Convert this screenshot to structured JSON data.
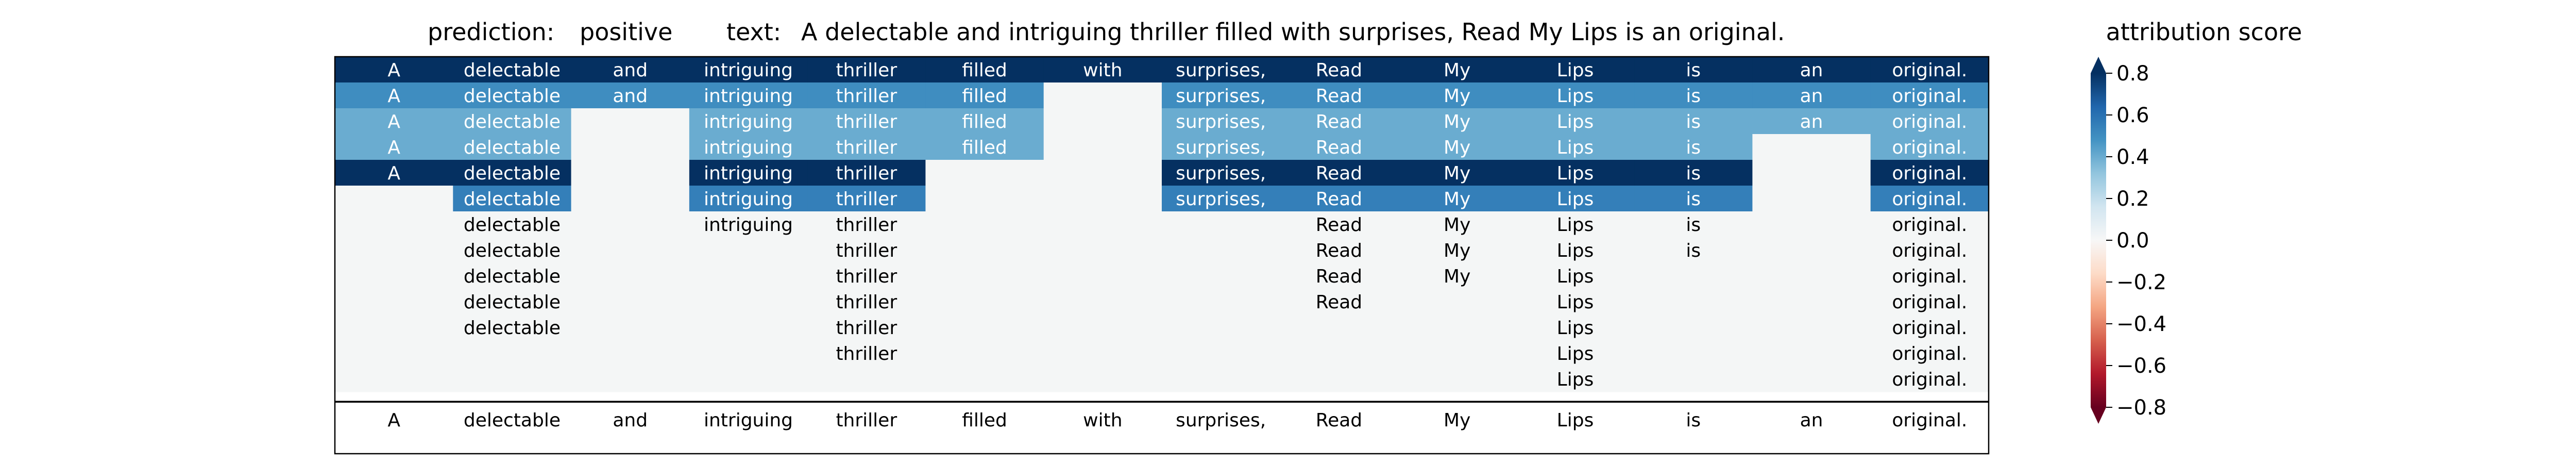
{
  "chart_data": {
    "type": "heatmap",
    "title_parts": {
      "prediction_label": "prediction:",
      "prediction_value": "positive",
      "text_label": "text:",
      "text_value": "A delectable and intriguing thriller filled with surprises, Read My Lips is an original."
    },
    "tokens": [
      "A",
      "delectable",
      "and",
      "intriguing",
      "thriller",
      "filled",
      "with",
      "surprises,",
      "Read",
      "My",
      "Lips",
      "is",
      "an",
      "original."
    ],
    "rows": [
      [
        0.8,
        0.8,
        0.8,
        0.8,
        0.8,
        0.8,
        0.8,
        0.8,
        0.8,
        0.8,
        0.8,
        0.8,
        0.8,
        0.8
      ],
      [
        0.5,
        0.5,
        0.5,
        0.5,
        0.5,
        0.5,
        null,
        0.5,
        0.5,
        0.5,
        0.5,
        0.5,
        0.5,
        0.5
      ],
      [
        0.4,
        0.4,
        null,
        0.4,
        0.4,
        0.4,
        null,
        0.4,
        0.4,
        0.4,
        0.4,
        0.4,
        0.4,
        0.4
      ],
      [
        0.4,
        0.4,
        null,
        0.4,
        0.4,
        0.4,
        null,
        0.4,
        0.4,
        0.4,
        0.4,
        0.4,
        null,
        0.4
      ],
      [
        0.9,
        0.9,
        null,
        0.9,
        0.9,
        null,
        null,
        0.9,
        0.9,
        0.9,
        0.9,
        0.9,
        null,
        0.9
      ],
      [
        null,
        0.55,
        null,
        0.55,
        0.55,
        null,
        null,
        0.55,
        0.55,
        0.55,
        0.55,
        0.55,
        null,
        0.55
      ],
      [
        null,
        0.0,
        null,
        0.0,
        0.0,
        null,
        null,
        null,
        0.0,
        0.0,
        0.0,
        0.0,
        null,
        0.0
      ],
      [
        null,
        0.0,
        null,
        null,
        0.0,
        null,
        null,
        null,
        0.0,
        0.0,
        0.0,
        0.0,
        null,
        0.0
      ],
      [
        null,
        0.0,
        null,
        null,
        0.0,
        null,
        null,
        null,
        0.0,
        0.0,
        0.0,
        null,
        null,
        0.0
      ],
      [
        null,
        0.0,
        null,
        null,
        0.0,
        null,
        null,
        null,
        0.0,
        null,
        0.0,
        null,
        null,
        0.0
      ],
      [
        null,
        0.0,
        null,
        null,
        0.0,
        null,
        null,
        null,
        null,
        null,
        0.0,
        null,
        null,
        0.0
      ],
      [
        null,
        null,
        null,
        null,
        0.0,
        null,
        null,
        null,
        null,
        null,
        0.0,
        null,
        null,
        0.0
      ],
      [
        null,
        null,
        null,
        null,
        null,
        null,
        null,
        null,
        null,
        null,
        0.0,
        null,
        null,
        0.0
      ]
    ],
    "colorbar": {
      "label": "attribution score",
      "range": [
        -0.8,
        0.8
      ],
      "ticks": [
        0.8,
        0.6,
        0.4,
        0.2,
        0.0,
        -0.2,
        -0.4,
        -0.6,
        -0.8
      ],
      "tick_labels": [
        "0.8",
        "0.6",
        "0.4",
        "0.2",
        "0.0",
        "−0.2",
        "−0.4",
        "−0.6",
        "−0.8"
      ],
      "colormap": "RdBu"
    },
    "colors": {
      "empty_cell": "#f4f6f6",
      "text_on_dark": "#ffffff",
      "text_on_light": "#000000"
    }
  }
}
